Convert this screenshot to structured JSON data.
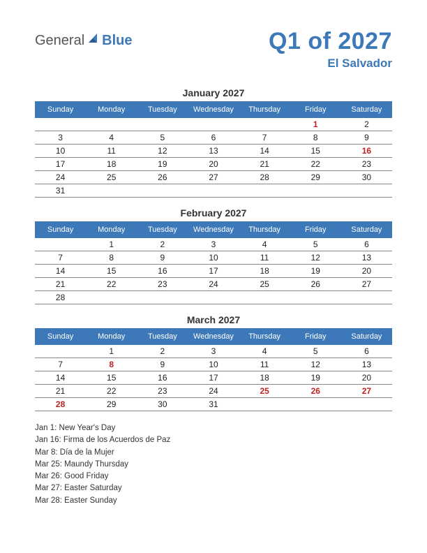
{
  "logo": {
    "part1": "General",
    "part2": "Blue"
  },
  "title": "Q1 of 2027",
  "subtitle": "El Salvador",
  "colors": {
    "accent": "#3d78b8",
    "holiday": "#c02020",
    "text": "#333333",
    "grid": "#888888",
    "background": "#ffffff"
  },
  "day_headers": [
    "Sunday",
    "Monday",
    "Tuesday",
    "Wednesday",
    "Thursday",
    "Friday",
    "Saturday"
  ],
  "months": [
    {
      "name": "January 2027",
      "weeks": [
        [
          null,
          null,
          null,
          null,
          null,
          {
            "d": 1,
            "h": true
          },
          {
            "d": 2
          }
        ],
        [
          {
            "d": 3
          },
          {
            "d": 4
          },
          {
            "d": 5
          },
          {
            "d": 6
          },
          {
            "d": 7
          },
          {
            "d": 8
          },
          {
            "d": 9
          }
        ],
        [
          {
            "d": 10
          },
          {
            "d": 11
          },
          {
            "d": 12
          },
          {
            "d": 13
          },
          {
            "d": 14
          },
          {
            "d": 15
          },
          {
            "d": 16,
            "h": true
          }
        ],
        [
          {
            "d": 17
          },
          {
            "d": 18
          },
          {
            "d": 19
          },
          {
            "d": 20
          },
          {
            "d": 21
          },
          {
            "d": 22
          },
          {
            "d": 23
          }
        ],
        [
          {
            "d": 24
          },
          {
            "d": 25
          },
          {
            "d": 26
          },
          {
            "d": 27
          },
          {
            "d": 28
          },
          {
            "d": 29
          },
          {
            "d": 30
          }
        ],
        [
          {
            "d": 31
          },
          null,
          null,
          null,
          null,
          null,
          null
        ]
      ]
    },
    {
      "name": "February 2027",
      "weeks": [
        [
          null,
          {
            "d": 1
          },
          {
            "d": 2
          },
          {
            "d": 3
          },
          {
            "d": 4
          },
          {
            "d": 5
          },
          {
            "d": 6
          }
        ],
        [
          {
            "d": 7
          },
          {
            "d": 8
          },
          {
            "d": 9
          },
          {
            "d": 10
          },
          {
            "d": 11
          },
          {
            "d": 12
          },
          {
            "d": 13
          }
        ],
        [
          {
            "d": 14
          },
          {
            "d": 15
          },
          {
            "d": 16
          },
          {
            "d": 17
          },
          {
            "d": 18
          },
          {
            "d": 19
          },
          {
            "d": 20
          }
        ],
        [
          {
            "d": 21
          },
          {
            "d": 22
          },
          {
            "d": 23
          },
          {
            "d": 24
          },
          {
            "d": 25
          },
          {
            "d": 26
          },
          {
            "d": 27
          }
        ],
        [
          {
            "d": 28
          },
          null,
          null,
          null,
          null,
          null,
          null
        ]
      ]
    },
    {
      "name": "March 2027",
      "weeks": [
        [
          null,
          {
            "d": 1
          },
          {
            "d": 2
          },
          {
            "d": 3
          },
          {
            "d": 4
          },
          {
            "d": 5
          },
          {
            "d": 6
          }
        ],
        [
          {
            "d": 7
          },
          {
            "d": 8,
            "h": true
          },
          {
            "d": 9
          },
          {
            "d": 10
          },
          {
            "d": 11
          },
          {
            "d": 12
          },
          {
            "d": 13
          }
        ],
        [
          {
            "d": 14
          },
          {
            "d": 15
          },
          {
            "d": 16
          },
          {
            "d": 17
          },
          {
            "d": 18
          },
          {
            "d": 19
          },
          {
            "d": 20
          }
        ],
        [
          {
            "d": 21
          },
          {
            "d": 22
          },
          {
            "d": 23
          },
          {
            "d": 24
          },
          {
            "d": 25,
            "h": true
          },
          {
            "d": 26,
            "h": true
          },
          {
            "d": 27,
            "h": true
          }
        ],
        [
          {
            "d": 28,
            "h": true
          },
          {
            "d": 29
          },
          {
            "d": 30
          },
          {
            "d": 31
          },
          null,
          null,
          null
        ]
      ]
    }
  ],
  "holidays_list": [
    "Jan 1: New Year's Day",
    "Jan 16: Firma de los Acuerdos de Paz",
    "Mar 8: Día de la Mujer",
    "Mar 25: Maundy Thursday",
    "Mar 26: Good Friday",
    "Mar 27: Easter Saturday",
    "Mar 28: Easter Sunday"
  ]
}
